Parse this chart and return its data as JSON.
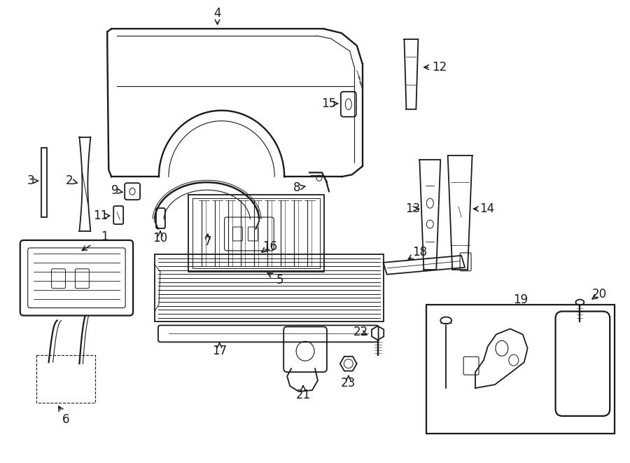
{
  "bg_color": "#ffffff",
  "line_color": "#1a1a1a",
  "fig_width": 9.0,
  "fig_height": 6.61,
  "label_fontsize": 12,
  "parts": [
    "1",
    "2",
    "3",
    "4",
    "5",
    "6",
    "7",
    "8",
    "9",
    "10",
    "11",
    "12",
    "13",
    "14",
    "15",
    "16",
    "17",
    "18",
    "19",
    "20",
    "21",
    "22",
    "23"
  ]
}
